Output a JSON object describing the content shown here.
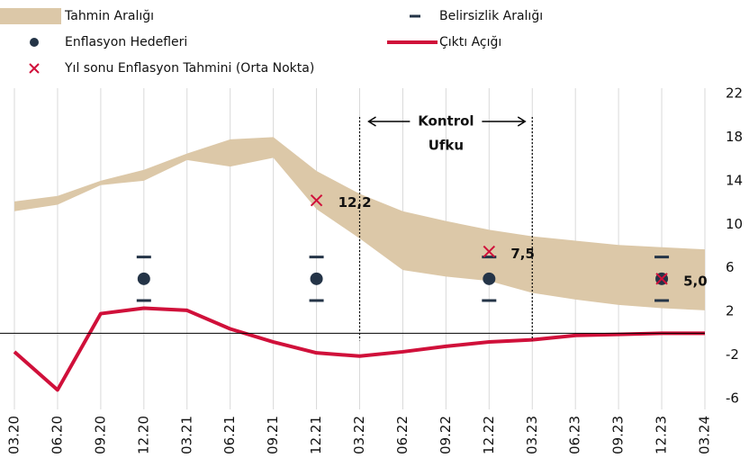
{
  "chart_data": {
    "type": "combo",
    "categories": [
      "03.20",
      "06.20",
      "09.20",
      "12.20",
      "03.21",
      "06.21",
      "09.21",
      "12.21",
      "03.22",
      "06.22",
      "09.22",
      "12.22",
      "03.23",
      "06.23",
      "09.23",
      "12.23",
      "03.24"
    ],
    "series": [
      {
        "name": "Tahmin Aralığı",
        "type": "band",
        "color": "#dcc8a8",
        "upper": [
          12.1,
          12.6,
          14.0,
          15.0,
          16.5,
          17.8,
          18.0,
          14.9,
          12.8,
          11.2,
          10.3,
          9.5,
          8.9,
          8.5,
          8.1,
          7.9,
          7.7
        ],
        "lower": [
          11.2,
          11.8,
          13.6,
          14.0,
          15.9,
          15.3,
          16.1,
          11.4,
          8.7,
          5.8,
          5.2,
          4.8,
          3.7,
          3.1,
          2.6,
          2.3,
          2.1
        ]
      },
      {
        "name": "Belirsizlik Aralığı",
        "type": "range",
        "color": "#243447",
        "upper": [
          null,
          null,
          null,
          7,
          null,
          null,
          null,
          7,
          null,
          null,
          null,
          7,
          null,
          null,
          null,
          7,
          null
        ],
        "lower": [
          null,
          null,
          null,
          3,
          null,
          null,
          null,
          3,
          null,
          null,
          null,
          3,
          null,
          null,
          null,
          3,
          null
        ]
      },
      {
        "name": "Enflasyon Hedefleri",
        "type": "point",
        "color": "#243447",
        "values": [
          null,
          null,
          null,
          5,
          null,
          null,
          null,
          5,
          null,
          null,
          null,
          5,
          null,
          null,
          null,
          5,
          null
        ]
      },
      {
        "name": "Çıktı Açığı",
        "type": "line",
        "color": "#d0103a",
        "values": [
          -1.7,
          -5.2,
          1.8,
          2.3,
          2.1,
          0.4,
          -0.8,
          -1.8,
          -2.1,
          -1.7,
          -1.2,
          -0.8,
          -0.6,
          -0.2,
          -0.1,
          0,
          0
        ]
      },
      {
        "name": "Yıl sonu Enflasyon Tahmini (Orta Nokta)",
        "type": "cross",
        "color": "#d0103a",
        "values": [
          null,
          null,
          null,
          null,
          null,
          null,
          null,
          12.2,
          null,
          null,
          null,
          7.5,
          null,
          null,
          null,
          5.0,
          null
        ],
        "value_labels": [
          null,
          null,
          null,
          null,
          null,
          null,
          null,
          "12,2",
          null,
          null,
          null,
          "7,5",
          null,
          null,
          null,
          "5,0",
          null
        ]
      }
    ],
    "ylim": [
      -6,
      22
    ],
    "yticks": [
      22,
      18,
      14,
      10,
      6,
      2,
      -2,
      -6
    ],
    "y_axis_side": "right",
    "grid": "x",
    "annotation": {
      "lines": [
        "Kontrol",
        "Ufku"
      ],
      "from": "03.22",
      "to": "03.23"
    }
  }
}
